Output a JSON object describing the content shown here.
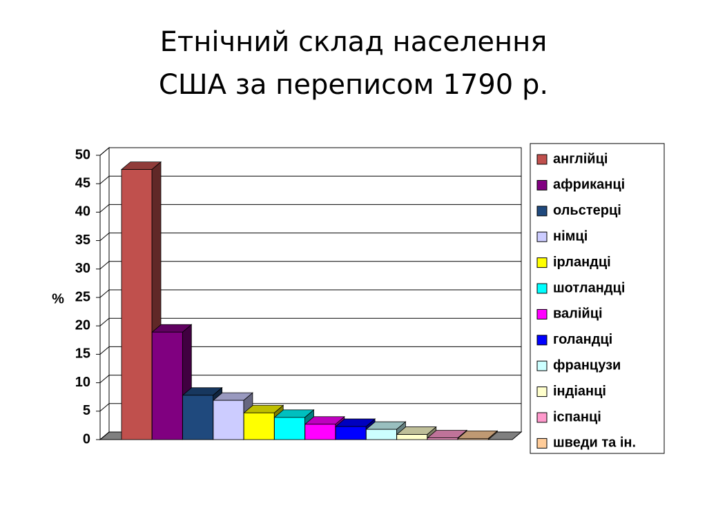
{
  "chart_data": {
    "type": "bar3d",
    "title": "Етнічний склад населення США за переписом 1790 р.",
    "y_label": "%",
    "categories": [
      "англійці",
      "африканці",
      "ольстерці",
      "німці",
      "ірландці",
      "шотландці",
      "валійці",
      "голандці",
      "французи",
      "індіанці",
      "іспанці",
      "шведи та ін."
    ],
    "values": [
      47.5,
      18.9,
      7.8,
      6.9,
      4.7,
      3.9,
      2.7,
      2.3,
      1.8,
      0.9,
      0.3,
      0.2
    ],
    "colors": [
      "#c0504d",
      "#800080",
      "#1f497d",
      "#ccccff",
      "#ffff00",
      "#00ffff",
      "#ff00ff",
      "#0000ff",
      "#ccffff",
      "#ffffcc",
      "#ff99cc",
      "#ffcc99"
    ],
    "ylim": [
      0,
      50
    ],
    "yticks": [
      0,
      5,
      10,
      15,
      20,
      25,
      30,
      35,
      40,
      45,
      50
    ],
    "grid": true,
    "legend": "right"
  }
}
